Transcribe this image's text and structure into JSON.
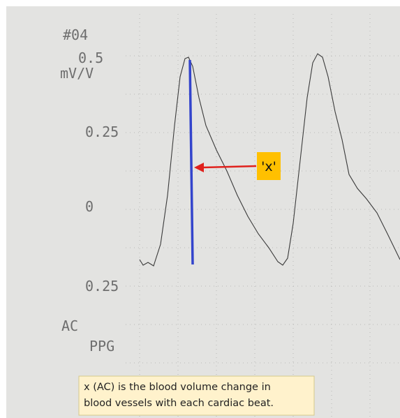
{
  "printout": {
    "header": "#04",
    "scale_top": "0.5",
    "unit": "mV/V",
    "labels": [
      "0.25",
      "0",
      "0.25"
    ],
    "footer": [
      "AC",
      "PPG"
    ]
  },
  "annotation": {
    "marker": "'x'",
    "caption": [
      "x (AC) is the blood volume change in",
      "blood vessels with each cardiac beat."
    ]
  }
}
